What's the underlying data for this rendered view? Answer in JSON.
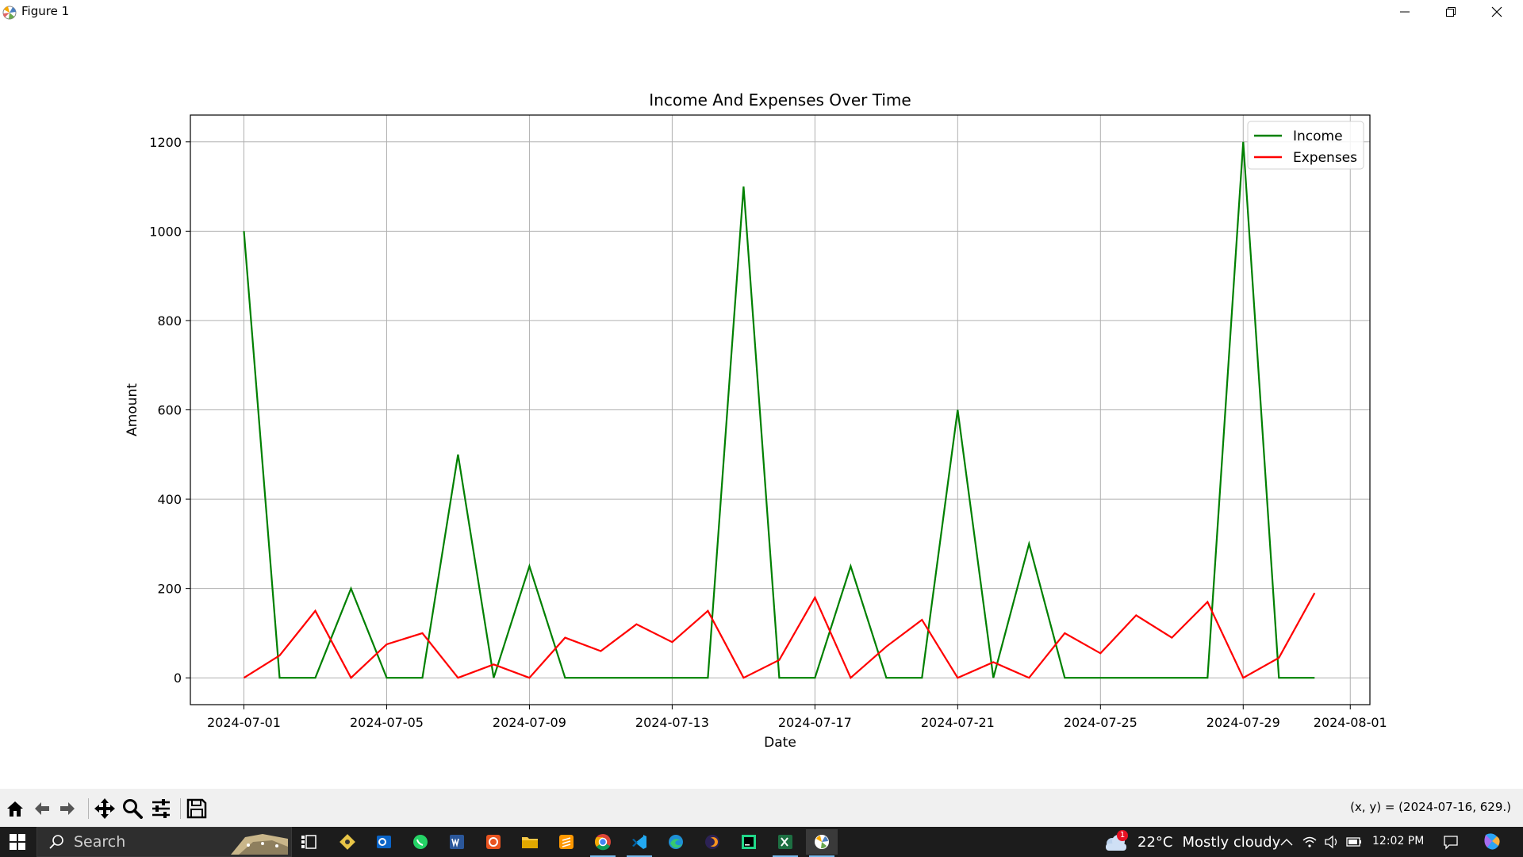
{
  "window": {
    "title": "Figure 1",
    "controls": [
      "minimize",
      "maximize",
      "close"
    ]
  },
  "chart_data": {
    "type": "line",
    "title": "Income And Expenses Over Time",
    "xlabel": "Date",
    "ylabel": "Amount",
    "x": [
      "2024-07-01",
      "2024-07-02",
      "2024-07-03",
      "2024-07-04",
      "2024-07-05",
      "2024-07-06",
      "2024-07-07",
      "2024-07-08",
      "2024-07-09",
      "2024-07-10",
      "2024-07-11",
      "2024-07-12",
      "2024-07-13",
      "2024-07-14",
      "2024-07-15",
      "2024-07-16",
      "2024-07-17",
      "2024-07-18",
      "2024-07-19",
      "2024-07-20",
      "2024-07-21",
      "2024-07-22",
      "2024-07-23",
      "2024-07-24",
      "2024-07-25",
      "2024-07-26",
      "2024-07-27",
      "2024-07-28",
      "2024-07-29",
      "2024-07-30",
      "2024-07-31"
    ],
    "series": [
      {
        "name": "Income",
        "color": "#008000",
        "values": [
          1000,
          0,
          0,
          200,
          0,
          0,
          500,
          0,
          250,
          0,
          0,
          0,
          0,
          0,
          1100,
          0,
          0,
          250,
          0,
          0,
          600,
          0,
          300,
          0,
          0,
          0,
          0,
          0,
          1200,
          0,
          0
        ]
      },
      {
        "name": "Expenses",
        "color": "#ff0000",
        "values": [
          0,
          50,
          150,
          0,
          75,
          100,
          0,
          30,
          0,
          90,
          60,
          120,
          80,
          150,
          0,
          40,
          180,
          0,
          70,
          130,
          0,
          35,
          0,
          100,
          55,
          140,
          90,
          170,
          0,
          45,
          190
        ]
      }
    ],
    "xticks": [
      "2024-07-01",
      "2024-07-05",
      "2024-07-09",
      "2024-07-13",
      "2024-07-17",
      "2024-07-21",
      "2024-07-25",
      "2024-07-29",
      "2024-08-01"
    ],
    "yticks": [
      0,
      200,
      400,
      600,
      800,
      1000,
      1200
    ],
    "xlim": [
      "2024-06-29.5",
      "2024-08-02"
    ],
    "ylim": [
      -60,
      1260
    ],
    "grid": true,
    "legend_position": "upper right"
  },
  "toolbar": {
    "buttons": [
      "home-icon",
      "back-icon",
      "forward-icon",
      "pan-icon",
      "zoom-icon",
      "configure-icon",
      "save-icon"
    ],
    "coords_text": "(x, y) = (2024-07-16, 629.)"
  },
  "taskbar": {
    "search_placeholder": "Search",
    "weather_temp": "22°C",
    "weather_condition": "Mostly cloudy",
    "weather_badge": "1",
    "time": "12:02 PM"
  }
}
